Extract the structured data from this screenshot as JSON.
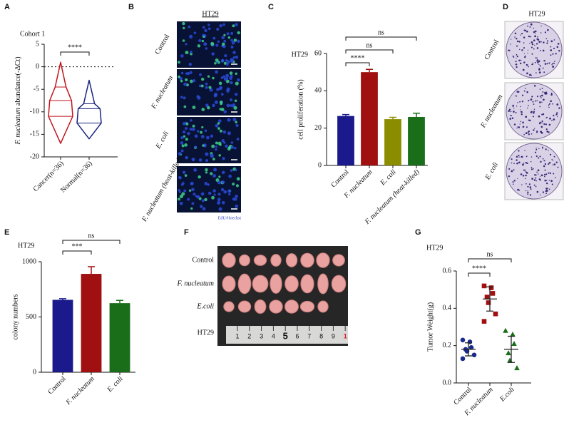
{
  "chart_data": [
    {
      "type": "violin",
      "panel": "A",
      "title": "Cohort 1",
      "ylabel": [
        "F. nucleatum",
        "abundance(-ΔCt)"
      ],
      "categories": [
        "Cancer(n=36)",
        "Normal(n=36)"
      ],
      "series": [
        {
          "color": "#c0141e",
          "min": -17,
          "q1": -11,
          "median": -7.5,
          "q3": -4.5,
          "max": 1
        },
        {
          "color": "#1a237e",
          "min": -16,
          "q1": -12.5,
          "median": -9.3,
          "q3": -8.2,
          "max": -3
        }
      ],
      "ylim": [
        -20,
        5
      ],
      "yticks": [
        5,
        0,
        -5,
        -10,
        -15,
        -20
      ],
      "reference_line": 0,
      "comparisons": [
        {
          "between": [
            "Cancer(n=36)",
            "Normal(n=36)"
          ],
          "label": "****"
        }
      ]
    },
    {
      "type": "image_grid",
      "panel": "B",
      "title": "HT29",
      "rows": [
        "Control",
        "F. nucleatum",
        "E. coli",
        "F. nucleatum (heat-killed)"
      ],
      "italic": [
        false,
        true,
        true,
        true
      ],
      "legend": "EdU/Hoechst"
    },
    {
      "type": "bar",
      "panel": "C",
      "title": "HT29",
      "ylabel": "cell proliferation (%)",
      "categories": [
        "Control",
        "F. nucleatum",
        "E. coli",
        "F. nucleatum (heat-killed)"
      ],
      "italic": [
        false,
        true,
        true,
        true
      ],
      "values": [
        26.5,
        50,
        24.8,
        26
      ],
      "errors": [
        0.8,
        1.5,
        1,
        2
      ],
      "colors": [
        "#1a1a8c",
        "#a01010",
        "#8c8c00",
        "#1a6e1a"
      ],
      "ylim": [
        0,
        60
      ],
      "yticks": [
        0,
        20,
        40,
        60
      ],
      "comparisons": [
        {
          "between": [
            "Control",
            "F. nucleatum"
          ],
          "label": "****"
        },
        {
          "between": [
            "Control",
            "E. coli"
          ],
          "label": "ns"
        },
        {
          "between": [
            "Control",
            "F. nucleatum (heat-killed)"
          ],
          "label": "ns"
        }
      ]
    },
    {
      "type": "dish_grid",
      "panel": "D",
      "title": "HT29",
      "rows": [
        "Control",
        "F. nucleatum",
        "E. coli"
      ],
      "italic": [
        false,
        true,
        true
      ]
    },
    {
      "type": "bar",
      "panel": "E",
      "title": "HT29",
      "ylabel": "colony numbers",
      "categories": [
        "Control",
        "F. nucleatum",
        "E. coli"
      ],
      "italic": [
        false,
        true,
        true
      ],
      "values": [
        655,
        890,
        625
      ],
      "errors": [
        10,
        65,
        25
      ],
      "colors": [
        "#1a1a8c",
        "#a01010",
        "#1a6e1a"
      ],
      "ylim": [
        0,
        1000
      ],
      "yticks": [
        0,
        500,
        1000
      ],
      "comparisons": [
        {
          "between": [
            "Control",
            "F. nucleatum"
          ],
          "label": "***"
        },
        {
          "between": [
            "Control",
            "E. coli"
          ],
          "label": "ns"
        }
      ]
    },
    {
      "type": "photo",
      "panel": "F",
      "rows": [
        "Control",
        "F. nucleatum",
        "E.coli",
        "HT29"
      ],
      "italic": [
        false,
        true,
        true,
        false
      ],
      "ruler_labels": [
        "1",
        "2",
        "3",
        "4",
        "5",
        "6",
        "7",
        "8",
        "9",
        "1"
      ]
    },
    {
      "type": "dotplot",
      "panel": "G",
      "title": "HT29",
      "ylabel": "Tumor Weight(g)",
      "categories": [
        "Control",
        "F. nucleatum",
        "E.coli"
      ],
      "italic": [
        false,
        true,
        true
      ],
      "values": [
        [
          0.23,
          0.22,
          0.19,
          0.18,
          0.17,
          0.15,
          0.13
        ],
        [
          0.52,
          0.51,
          0.48,
          0.46,
          0.43,
          0.37,
          0.33
        ],
        [
          0.28,
          0.26,
          0.21,
          0.16,
          0.12,
          0.08
        ]
      ],
      "means": [
        0.18,
        0.45,
        0.18
      ],
      "sds": [
        0.035,
        0.065,
        0.07
      ],
      "colors": [
        "#1a2a8c",
        "#a01010",
        "#1a6e1a"
      ],
      "markers": [
        "circle",
        "square",
        "triangle"
      ],
      "ylim": [
        0,
        0.6
      ],
      "yticks": [
        {
          "value": 0,
          "label": "0.0"
        },
        {
          "value": 0.2,
          "label": "0.2"
        },
        {
          "value": 0.4,
          "label": "0.4"
        },
        {
          "value": 0.6,
          "label": "0.6"
        }
      ],
      "comparisons": [
        {
          "between": [
            "Control",
            "F. nucleatum"
          ],
          "label": "****"
        },
        {
          "between": [
            "Control",
            "E.coli"
          ],
          "label": "ns"
        }
      ]
    }
  ]
}
